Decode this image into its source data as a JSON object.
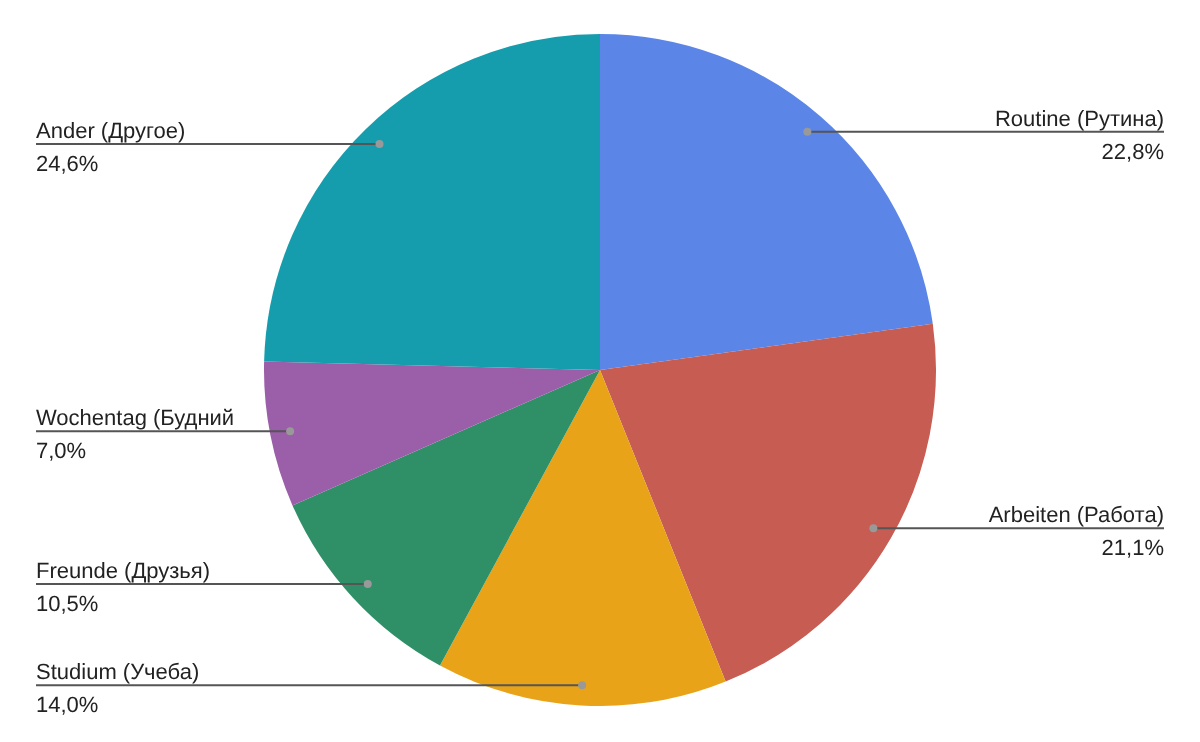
{
  "chart_data": {
    "type": "pie",
    "categories": [
      "Routine (Рутина)",
      "Arbeiten (Работа)",
      "Studium (Учеба)",
      "Freunde (Друзья)",
      "Wochentag (Будний",
      "Ander (Другое)"
    ],
    "values": [
      22.8,
      21.1,
      14.0,
      10.5,
      7.0,
      24.6
    ],
    "value_labels": [
      "22,8%",
      "21,1%",
      "14,0%",
      "10,5%",
      "7,0%",
      "24,6%"
    ],
    "colors": [
      "#5b86e8",
      "#c65c52",
      "#e8a319",
      "#2f9068",
      "#9b5ea8",
      "#169dad"
    ],
    "legend": false
  }
}
